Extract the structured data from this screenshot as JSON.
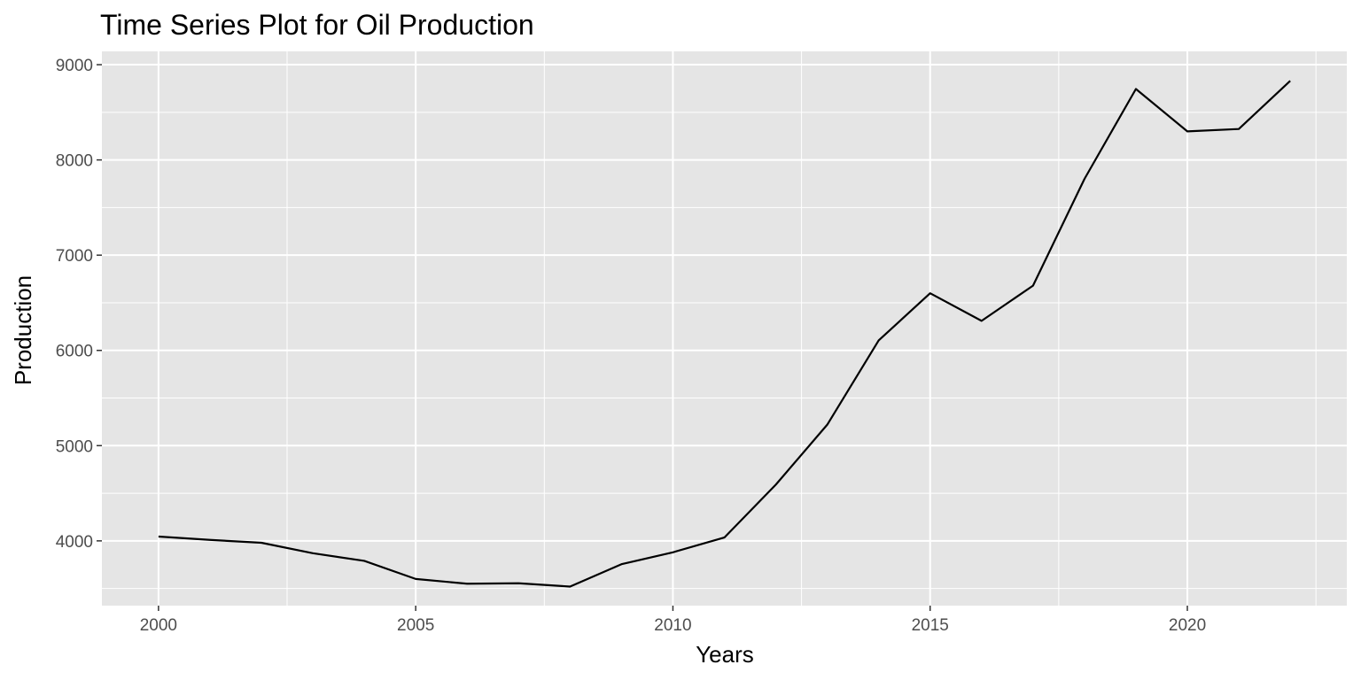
{
  "chart_data": {
    "type": "line",
    "title": "Time Series Plot for Oil Production",
    "xlabel": "Years",
    "ylabel": "Production",
    "xlim": [
      1998.9,
      2023.1
    ],
    "ylim": [
      3320,
      9140
    ],
    "x_ticks": [
      2000,
      2005,
      2010,
      2015,
      2020
    ],
    "x_tick_labels": [
      "2000",
      "2005",
      "2010",
      "2015",
      "2020"
    ],
    "x_minor_ticks": [
      2002.5,
      2007.5,
      2012.5,
      2017.5,
      2022.5
    ],
    "y_ticks": [
      4000,
      5000,
      6000,
      7000,
      8000,
      9000
    ],
    "y_tick_labels": [
      "4000",
      "5000",
      "6000",
      "7000",
      "8000",
      "9000"
    ],
    "y_minor_ticks": [
      3500,
      4500,
      5500,
      6500,
      7500,
      8500
    ],
    "grid": true,
    "legend": "none",
    "colors": {
      "panel_background": "#e5e5e5",
      "grid_line": "#ffffff",
      "line": "#000000",
      "tick_text": "#4d4d4d",
      "tick_mark": "#333333"
    },
    "series": [
      {
        "x": [
          2000,
          2001,
          2002,
          2003,
          2004,
          2005,
          2006,
          2007,
          2008,
          2009,
          2010,
          2011,
          2012,
          2013,
          2014,
          2015,
          2016,
          2017,
          2018,
          2019,
          2020,
          2021,
          2022
        ],
        "values": [
          4045,
          4010,
          3980,
          3870,
          3790,
          3600,
          3550,
          3555,
          3520,
          3755,
          3880,
          4035,
          4590,
          5220,
          6105,
          6600,
          6310,
          6680,
          7800,
          8745,
          8300,
          8325,
          8830
        ]
      }
    ]
  }
}
